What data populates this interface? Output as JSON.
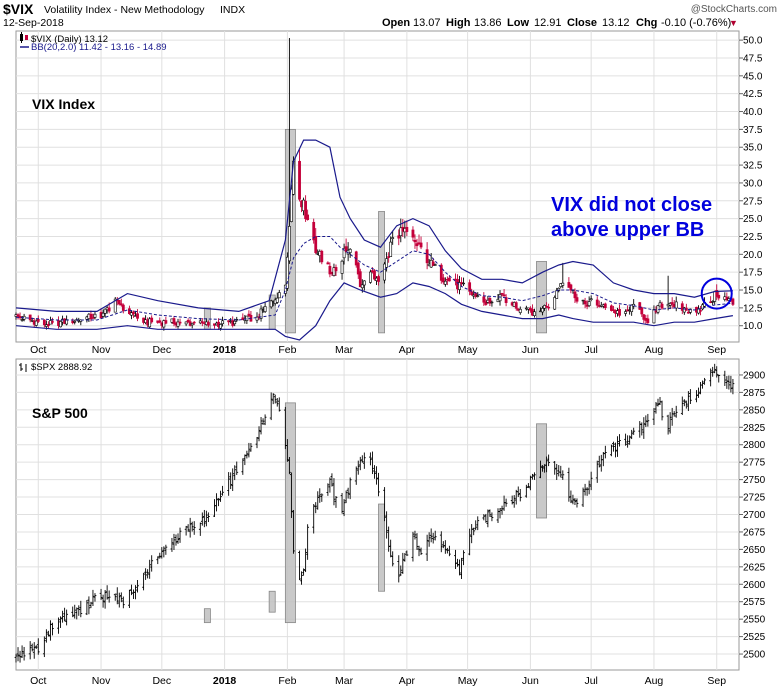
{
  "header": {
    "symbol": "$VIX",
    "name": "Volatility Index - New Methodology",
    "exchange": "INDX",
    "date": "12-Sep-2018",
    "open_label": "Open",
    "open": "13.07",
    "high_label": "High",
    "high": "13.86",
    "low_label": "Low",
    "low": "12.91",
    "close_label": "Close",
    "close": "13.12",
    "chg_label": "Chg",
    "chg": "-0.10 (-0.76%)",
    "chg_arrow": "▼",
    "watermark": "@StockCharts.com"
  },
  "colors": {
    "vix_up": "#000000",
    "vix_down": "#c4003a",
    "bb": "#1a1a8c",
    "bb_mid": "#1a1a8c",
    "spx": "#000000",
    "highlight": "#c0c0c0",
    "annotation": "#0000dd",
    "grid": "#e0e0e0"
  },
  "chart_data": [
    {
      "type": "candlestick",
      "panel": "top",
      "legend": [
        {
          "icon": "candle-icon",
          "text": "$VIX (Daily) 13.12"
        },
        {
          "icon": "line-icon",
          "text": "BB(20,2.0) 11.42 - 13.16 - 14.89"
        }
      ],
      "label": "VIX Index",
      "annotation": [
        "VIX did not close",
        "above upper BB"
      ],
      "y_ticks": [
        "10.0",
        "12.5",
        "15.0",
        "17.5",
        "20.0",
        "22.5",
        "25.0",
        "27.5",
        "30.0",
        "32.5",
        "35.0",
        "37.5",
        "40.0",
        "42.5",
        "45.0",
        "47.5",
        "50.0"
      ],
      "ylim": [
        8.0,
        51.0
      ],
      "x_ticks": [
        "Oct",
        "Nov",
        "Dec",
        "2018",
        "Feb",
        "Mar",
        "Apr",
        "May",
        "Jun",
        "Jul",
        "Aug",
        "Sep"
      ],
      "x_tick_days": [
        11,
        42,
        72,
        103,
        134,
        162,
        193,
        223,
        254,
        284,
        315,
        346
      ],
      "x_range_days": [
        0,
        357
      ],
      "keypoints": [
        [
          0,
          11.3
        ],
        [
          15,
          10.2
        ],
        [
          30,
          10.8
        ],
        [
          42,
          11.5
        ],
        [
          50,
          13.5
        ],
        [
          55,
          12.0
        ],
        [
          65,
          10.5
        ],
        [
          80,
          10.5
        ],
        [
          95,
          10.2
        ],
        [
          110,
          10.5
        ],
        [
          120,
          11.5
        ],
        [
          128,
          14.0
        ],
        [
          133,
          16.0
        ],
        [
          135,
          25.0
        ],
        [
          137,
          33.0
        ],
        [
          139,
          30.0
        ],
        [
          142,
          26.5
        ],
        [
          145,
          25.0
        ],
        [
          148,
          21.0
        ],
        [
          151,
          19.0
        ],
        [
          155,
          17.5
        ],
        [
          160,
          19.0
        ],
        [
          163,
          21.0
        ],
        [
          166,
          19.5
        ],
        [
          170,
          16.0
        ],
        [
          175,
          17.0
        ],
        [
          180,
          16.5
        ],
        [
          184,
          20.0
        ],
        [
          187,
          23.5
        ],
        [
          191,
          23.0
        ],
        [
          195,
          22.0
        ],
        [
          200,
          21.0
        ],
        [
          205,
          18.5
        ],
        [
          210,
          17.0
        ],
        [
          215,
          16.0
        ],
        [
          220,
          15.5
        ],
        [
          225,
          14.5
        ],
        [
          230,
          13.5
        ],
        [
          235,
          13.0
        ],
        [
          240,
          14.0
        ],
        [
          244,
          13.5
        ],
        [
          248,
          12.5
        ],
        [
          252,
          12.8
        ],
        [
          255,
          12.0
        ],
        [
          260,
          12.5
        ],
        [
          264,
          13.0
        ],
        [
          268,
          15.5
        ],
        [
          271,
          17.0
        ],
        [
          274,
          15.0
        ],
        [
          277,
          14.0
        ],
        [
          280,
          13.0
        ],
        [
          285,
          13.5
        ],
        [
          290,
          12.5
        ],
        [
          296,
          12.0
        ],
        [
          300,
          11.5
        ],
        [
          305,
          12.8
        ],
        [
          309,
          11.5
        ],
        [
          312,
          10.8
        ],
        [
          317,
          12.5
        ],
        [
          322,
          13.5
        ],
        [
          328,
          12.5
        ],
        [
          333,
          12.0
        ],
        [
          338,
          12.5
        ],
        [
          343,
          13.5
        ],
        [
          346,
          14.5
        ],
        [
          349,
          14.0
        ],
        [
          352,
          13.5
        ],
        [
          354,
          13.12
        ]
      ],
      "spikes": [
        [
          135,
          50.3
        ],
        [
          138,
          41.0
        ],
        [
          139,
          37.5
        ],
        [
          145,
          27.0
        ],
        [
          188,
          26.0
        ],
        [
          206,
          19.5
        ],
        [
          270,
          18.8
        ],
        [
          322,
          17.0
        ],
        [
          346,
          15.8
        ]
      ],
      "bb_upper": [
        [
          0,
          12.5
        ],
        [
          20,
          12.0
        ],
        [
          40,
          12.0
        ],
        [
          55,
          14.5
        ],
        [
          70,
          13.5
        ],
        [
          90,
          12.5
        ],
        [
          110,
          12.0
        ],
        [
          125,
          13.5
        ],
        [
          133,
          22.0
        ],
        [
          137,
          33.0
        ],
        [
          142,
          36.0
        ],
        [
          148,
          36.0
        ],
        [
          155,
          35.0
        ],
        [
          160,
          28.0
        ],
        [
          165,
          25.0
        ],
        [
          172,
          22.0
        ],
        [
          180,
          21.0
        ],
        [
          188,
          24.0
        ],
        [
          196,
          25.0
        ],
        [
          204,
          24.0
        ],
        [
          212,
          20.5
        ],
        [
          220,
          18.0
        ],
        [
          230,
          16.5
        ],
        [
          240,
          16.5
        ],
        [
          250,
          16.0
        ],
        [
          260,
          17.5
        ],
        [
          268,
          18.5
        ],
        [
          275,
          19.0
        ],
        [
          285,
          18.5
        ],
        [
          295,
          16.0
        ],
        [
          305,
          15.0
        ],
        [
          315,
          14.5
        ],
        [
          325,
          14.5
        ],
        [
          335,
          14.0
        ],
        [
          345,
          14.8
        ],
        [
          354,
          14.89
        ]
      ],
      "bb_lower": [
        [
          0,
          10.0
        ],
        [
          20,
          9.5
        ],
        [
          40,
          9.5
        ],
        [
          55,
          10.0
        ],
        [
          70,
          9.5
        ],
        [
          90,
          9.5
        ],
        [
          110,
          9.5
        ],
        [
          128,
          9.5
        ],
        [
          133,
          8.5
        ],
        [
          140,
          8.0
        ],
        [
          148,
          10.0
        ],
        [
          155,
          13.5
        ],
        [
          162,
          16.0
        ],
        [
          170,
          15.0
        ],
        [
          180,
          14.0
        ],
        [
          188,
          14.5
        ],
        [
          196,
          16.0
        ],
        [
          204,
          15.5
        ],
        [
          212,
          14.5
        ],
        [
          220,
          13.0
        ],
        [
          230,
          12.0
        ],
        [
          240,
          11.5
        ],
        [
          250,
          11.0
        ],
        [
          260,
          11.0
        ],
        [
          268,
          11.5
        ],
        [
          275,
          11.0
        ],
        [
          285,
          10.5
        ],
        [
          295,
          10.5
        ],
        [
          305,
          10.5
        ],
        [
          315,
          10.0
        ],
        [
          325,
          10.5
        ],
        [
          335,
          10.5
        ],
        [
          345,
          11.0
        ],
        [
          354,
          11.42
        ]
      ],
      "bb_middle": [
        [
          0,
          11.2
        ],
        [
          20,
          10.8
        ],
        [
          40,
          10.8
        ],
        [
          55,
          12.2
        ],
        [
          70,
          11.5
        ],
        [
          90,
          11.0
        ],
        [
          110,
          10.8
        ],
        [
          128,
          11.5
        ],
        [
          133,
          15.0
        ],
        [
          137,
          19.5
        ],
        [
          142,
          21.5
        ],
        [
          148,
          22.5
        ],
        [
          155,
          22.5
        ],
        [
          160,
          21.0
        ],
        [
          165,
          20.0
        ],
        [
          172,
          18.5
        ],
        [
          180,
          17.5
        ],
        [
          188,
          19.0
        ],
        [
          196,
          20.5
        ],
        [
          204,
          20.0
        ],
        [
          212,
          17.5
        ],
        [
          220,
          15.5
        ],
        [
          230,
          14.2
        ],
        [
          240,
          14.0
        ],
        [
          250,
          13.5
        ],
        [
          260,
          14.2
        ],
        [
          268,
          15.0
        ],
        [
          275,
          15.0
        ],
        [
          285,
          14.5
        ],
        [
          295,
          13.2
        ],
        [
          305,
          12.8
        ],
        [
          315,
          12.2
        ],
        [
          325,
          12.5
        ],
        [
          335,
          12.2
        ],
        [
          345,
          12.9
        ],
        [
          354,
          13.16
        ]
      ]
    },
    {
      "type": "ohlc",
      "panel": "bottom",
      "legend": [
        {
          "icon": "ohlc-icon",
          "text": "$SPX 2888.92"
        }
      ],
      "label": "S&P 500",
      "y_ticks": [
        "2500",
        "2525",
        "2550",
        "2575",
        "2600",
        "2625",
        "2650",
        "2675",
        "2700",
        "2725",
        "2750",
        "2775",
        "2800",
        "2825",
        "2850",
        "2875",
        "2900"
      ],
      "ylim": [
        2480,
        2920
      ],
      "x_ticks": [
        "Oct",
        "Nov",
        "Dec",
        "2018",
        "Feb",
        "Mar",
        "Apr",
        "May",
        "Jun",
        "Jul",
        "Aug",
        "Sep"
      ],
      "x_tick_days": [
        11,
        42,
        72,
        103,
        134,
        162,
        193,
        223,
        254,
        284,
        315,
        346
      ],
      "x_range_days": [
        0,
        357
      ],
      "keypoints": [
        [
          0,
          2496
        ],
        [
          10,
          2505
        ],
        [
          20,
          2550
        ],
        [
          30,
          2560
        ],
        [
          40,
          2580
        ],
        [
          48,
          2585
        ],
        [
          52,
          2573
        ],
        [
          58,
          2590
        ],
        [
          65,
          2620
        ],
        [
          75,
          2655
        ],
        [
          85,
          2680
        ],
        [
          95,
          2695
        ],
        [
          105,
          2745
        ],
        [
          115,
          2790
        ],
        [
          122,
          2835
        ],
        [
          127,
          2872
        ],
        [
          131,
          2850
        ],
        [
          135,
          2760
        ],
        [
          137,
          2650
        ],
        [
          139,
          2590
        ],
        [
          142,
          2625
        ],
        [
          145,
          2700
        ],
        [
          150,
          2730
        ],
        [
          155,
          2745
        ],
        [
          160,
          2700
        ],
        [
          165,
          2745
        ],
        [
          170,
          2780
        ],
        [
          175,
          2775
        ],
        [
          180,
          2730
        ],
        [
          184,
          2650
        ],
        [
          188,
          2600
        ],
        [
          192,
          2640
        ],
        [
          196,
          2670
        ],
        [
          200,
          2650
        ],
        [
          205,
          2670
        ],
        [
          210,
          2650
        ],
        [
          215,
          2640
        ],
        [
          219,
          2620
        ],
        [
          222,
          2660
        ],
        [
          228,
          2690
        ],
        [
          235,
          2700
        ],
        [
          242,
          2720
        ],
        [
          250,
          2730
        ],
        [
          256,
          2760
        ],
        [
          262,
          2780
        ],
        [
          266,
          2770
        ],
        [
          270,
          2750
        ],
        [
          274,
          2715
        ],
        [
          278,
          2720
        ],
        [
          282,
          2740
        ],
        [
          286,
          2765
        ],
        [
          292,
          2790
        ],
        [
          298,
          2800
        ],
        [
          304,
          2810
        ],
        [
          310,
          2830
        ],
        [
          314,
          2850
        ],
        [
          318,
          2855
        ],
        [
          321,
          2820
        ],
        [
          325,
          2850
        ],
        [
          330,
          2858
        ],
        [
          336,
          2875
        ],
        [
          342,
          2898
        ],
        [
          345,
          2910
        ],
        [
          348,
          2895
        ],
        [
          352,
          2885
        ],
        [
          354,
          2889
        ]
      ]
    }
  ],
  "highlights": [
    {
      "from_day": 93,
      "to_day": 96,
      "vix_top": 12.5,
      "vix_bottom": 9.5,
      "spx_top": 2565,
      "spx_bottom": 2545
    },
    {
      "from_day": 125,
      "to_day": 128,
      "vix_top": 14.3,
      "vix_bottom": 9.5,
      "spx_top": 2590,
      "spx_bottom": 2560
    },
    {
      "from_day": 133,
      "to_day": 138,
      "vix_top": 37.5,
      "vix_bottom": 9.0,
      "spx_top": 2860,
      "spx_bottom": 2545
    },
    {
      "from_day": 179,
      "to_day": 182,
      "vix_top": 26.0,
      "vix_bottom": 9.0,
      "spx_top": 2715,
      "spx_bottom": 2590
    },
    {
      "from_day": 257,
      "to_day": 262,
      "vix_top": 19.0,
      "vix_bottom": 9.0,
      "spx_top": 2830,
      "spx_bottom": 2695
    }
  ],
  "circle": {
    "day": 346,
    "value": 14.5
  }
}
